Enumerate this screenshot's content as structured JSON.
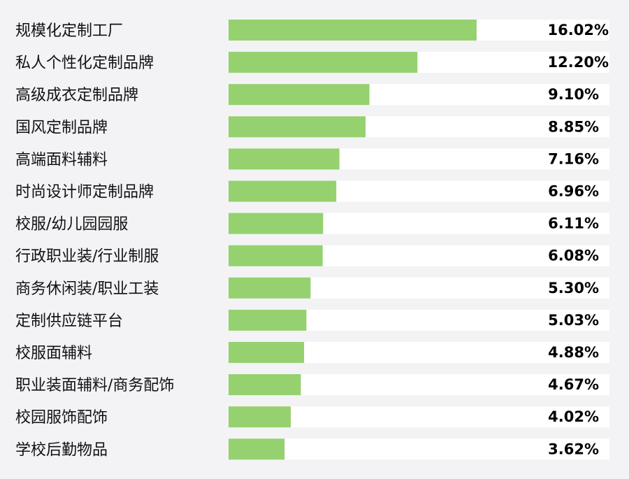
{
  "chart_data": {
    "type": "bar",
    "orientation": "horizontal",
    "categories": [
      "规模化定制工厂",
      "私人个性化定制品牌",
      "高级成衣定制品牌",
      "国风定制品牌",
      "高端面料辅料",
      "时尚设计师定制品牌",
      "校服/幼儿园园服",
      "行政职业装/行业制服",
      "商务休闲装/职业工装",
      "定制供应链平台",
      "校服面辅料",
      "职业装面辅料/商务配饰",
      "校园服饰配饰",
      "学校后勤物品"
    ],
    "values": [
      16.02,
      12.2,
      9.1,
      8.85,
      7.16,
      6.96,
      6.11,
      6.08,
      5.3,
      5.03,
      4.88,
      4.67,
      4.02,
      3.62
    ],
    "value_labels": [
      "16.02%",
      "12.20%",
      "9.10%",
      "8.85%",
      "7.16%",
      "6.96%",
      "6.11%",
      "6.08%",
      "5.30%",
      "5.03%",
      "4.88%",
      "4.67%",
      "4.02%",
      "3.62%"
    ],
    "xlim": [
      0,
      24.6
    ],
    "bar_color": "#95d16e",
    "track_color": "#ffffff",
    "grid": false,
    "legend": "none"
  }
}
